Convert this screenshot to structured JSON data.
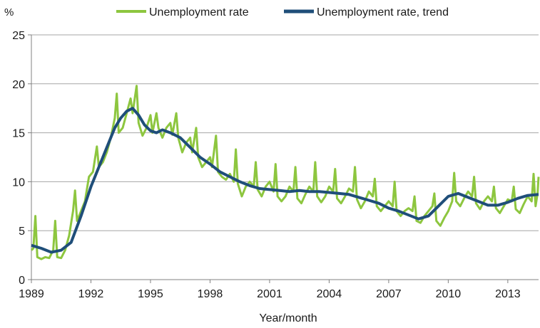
{
  "chart_data": {
    "type": "line",
    "title": "",
    "xlabel": "Year/month",
    "ylabel": "%",
    "ylim": [
      0,
      25
    ],
    "y_ticks": [
      "0",
      "5",
      "10",
      "15",
      "20",
      "25"
    ],
    "x_range": [
      1989.0,
      2014.55
    ],
    "x_ticks": [
      "1989",
      "1992",
      "1995",
      "1998",
      "2001",
      "2004",
      "2007",
      "2010",
      "2013"
    ],
    "grid": "horizontal",
    "legend_position": "top",
    "series": [
      {
        "name": "Unemployment rate",
        "color": "#8DC63F",
        "points": [
          [
            1989.0,
            3.0
          ],
          [
            1989.1,
            3.2
          ],
          [
            1989.2,
            6.5
          ],
          [
            1989.3,
            2.3
          ],
          [
            1989.5,
            2.1
          ],
          [
            1989.7,
            2.3
          ],
          [
            1989.9,
            2.2
          ],
          [
            1990.1,
            3.0
          ],
          [
            1990.2,
            6.0
          ],
          [
            1990.3,
            2.3
          ],
          [
            1990.5,
            2.2
          ],
          [
            1990.7,
            3.0
          ],
          [
            1990.9,
            4.5
          ],
          [
            1991.1,
            7.0
          ],
          [
            1991.2,
            9.1
          ],
          [
            1991.3,
            6.0
          ],
          [
            1991.5,
            7.0
          ],
          [
            1991.7,
            8.0
          ],
          [
            1991.9,
            10.5
          ],
          [
            1992.1,
            11.0
          ],
          [
            1992.3,
            13.6
          ],
          [
            1992.4,
            11.5
          ],
          [
            1992.6,
            12.0
          ],
          [
            1992.8,
            13.0
          ],
          [
            1993.0,
            14.5
          ],
          [
            1993.2,
            16.5
          ],
          [
            1993.3,
            19.0
          ],
          [
            1993.4,
            15.0
          ],
          [
            1993.6,
            15.5
          ],
          [
            1993.8,
            17.0
          ],
          [
            1994.0,
            18.5
          ],
          [
            1994.1,
            17.0
          ],
          [
            1994.3,
            19.8
          ],
          [
            1994.4,
            16.0
          ],
          [
            1994.6,
            14.7
          ],
          [
            1994.8,
            15.5
          ],
          [
            1995.0,
            16.8
          ],
          [
            1995.1,
            15.0
          ],
          [
            1995.3,
            17.0
          ],
          [
            1995.4,
            15.5
          ],
          [
            1995.6,
            14.5
          ],
          [
            1995.8,
            15.5
          ],
          [
            1996.0,
            16.0
          ],
          [
            1996.1,
            14.8
          ],
          [
            1996.3,
            17.0
          ],
          [
            1996.4,
            14.5
          ],
          [
            1996.6,
            13.0
          ],
          [
            1996.8,
            14.0
          ],
          [
            1997.0,
            14.5
          ],
          [
            1997.1,
            13.0
          ],
          [
            1997.3,
            15.5
          ],
          [
            1997.4,
            12.5
          ],
          [
            1997.6,
            11.5
          ],
          [
            1997.8,
            12.0
          ],
          [
            1998.0,
            12.5
          ],
          [
            1998.1,
            11.5
          ],
          [
            1998.3,
            14.7
          ],
          [
            1998.4,
            11.0
          ],
          [
            1998.6,
            10.5
          ],
          [
            1998.8,
            10.2
          ],
          [
            1999.0,
            10.8
          ],
          [
            1999.2,
            10.0
          ],
          [
            1999.3,
            13.3
          ],
          [
            1999.4,
            9.8
          ],
          [
            1999.6,
            8.5
          ],
          [
            1999.8,
            9.5
          ],
          [
            2000.0,
            10.0
          ],
          [
            2000.2,
            9.5
          ],
          [
            2000.3,
            12.0
          ],
          [
            2000.4,
            9.2
          ],
          [
            2000.6,
            8.5
          ],
          [
            2000.8,
            9.5
          ],
          [
            2001.0,
            10.0
          ],
          [
            2001.2,
            9.0
          ],
          [
            2001.3,
            11.8
          ],
          [
            2001.4,
            8.5
          ],
          [
            2001.6,
            8.0
          ],
          [
            2001.8,
            8.5
          ],
          [
            2002.0,
            9.5
          ],
          [
            2002.2,
            9.0
          ],
          [
            2002.3,
            11.5
          ],
          [
            2002.4,
            8.3
          ],
          [
            2002.6,
            7.8
          ],
          [
            2002.8,
            8.7
          ],
          [
            2003.0,
            9.5
          ],
          [
            2003.2,
            9.0
          ],
          [
            2003.3,
            12.0
          ],
          [
            2003.4,
            8.5
          ],
          [
            2003.6,
            7.9
          ],
          [
            2003.8,
            8.5
          ],
          [
            2004.0,
            9.5
          ],
          [
            2004.2,
            9.0
          ],
          [
            2004.3,
            11.3
          ],
          [
            2004.4,
            8.3
          ],
          [
            2004.6,
            7.8
          ],
          [
            2004.8,
            8.5
          ],
          [
            2005.0,
            9.3
          ],
          [
            2005.2,
            9.0
          ],
          [
            2005.3,
            11.5
          ],
          [
            2005.4,
            8.2
          ],
          [
            2005.6,
            7.3
          ],
          [
            2005.8,
            8.0
          ],
          [
            2006.0,
            9.0
          ],
          [
            2006.2,
            8.5
          ],
          [
            2006.3,
            10.3
          ],
          [
            2006.4,
            7.5
          ],
          [
            2006.6,
            7.0
          ],
          [
            2006.8,
            7.5
          ],
          [
            2007.0,
            8.0
          ],
          [
            2007.2,
            7.5
          ],
          [
            2007.3,
            10.0
          ],
          [
            2007.4,
            7.0
          ],
          [
            2007.6,
            6.5
          ],
          [
            2007.8,
            7.0
          ],
          [
            2008.0,
            7.3
          ],
          [
            2008.2,
            7.0
          ],
          [
            2008.3,
            8.5
          ],
          [
            2008.4,
            6.0
          ],
          [
            2008.6,
            5.8
          ],
          [
            2008.8,
            6.5
          ],
          [
            2009.0,
            7.0
          ],
          [
            2009.2,
            7.5
          ],
          [
            2009.3,
            8.8
          ],
          [
            2009.4,
            6.0
          ],
          [
            2009.6,
            5.5
          ],
          [
            2009.8,
            6.3
          ],
          [
            2010.0,
            7.0
          ],
          [
            2010.2,
            8.0
          ],
          [
            2010.3,
            10.9
          ],
          [
            2010.4,
            8.0
          ],
          [
            2010.6,
            7.5
          ],
          [
            2010.8,
            8.3
          ],
          [
            2011.0,
            9.0
          ],
          [
            2011.2,
            8.5
          ],
          [
            2011.3,
            10.5
          ],
          [
            2011.4,
            7.8
          ],
          [
            2011.6,
            7.2
          ],
          [
            2011.8,
            8.0
          ],
          [
            2012.0,
            8.5
          ],
          [
            2012.2,
            8.0
          ],
          [
            2012.3,
            9.5
          ],
          [
            2012.4,
            7.3
          ],
          [
            2012.6,
            6.8
          ],
          [
            2012.8,
            7.5
          ],
          [
            2013.0,
            8.2
          ],
          [
            2013.2,
            8.0
          ],
          [
            2013.3,
            9.5
          ],
          [
            2013.4,
            7.2
          ],
          [
            2013.6,
            6.8
          ],
          [
            2013.8,
            7.7
          ],
          [
            2014.0,
            8.5
          ],
          [
            2014.2,
            8.0
          ],
          [
            2014.3,
            10.8
          ],
          [
            2014.4,
            7.5
          ],
          [
            2014.5,
            8.8
          ],
          [
            2014.55,
            10.5
          ]
        ]
      },
      {
        "name": "Unemployment rate, trend",
        "color": "#1F4E79",
        "points": [
          [
            1989.0,
            3.5
          ],
          [
            1989.5,
            3.2
          ],
          [
            1990.0,
            2.8
          ],
          [
            1990.5,
            3.0
          ],
          [
            1991.0,
            3.8
          ],
          [
            1991.5,
            6.5
          ],
          [
            1992.0,
            9.5
          ],
          [
            1992.5,
            12.0
          ],
          [
            1993.0,
            14.5
          ],
          [
            1993.2,
            15.5
          ],
          [
            1993.5,
            16.5
          ],
          [
            1993.8,
            17.2
          ],
          [
            1994.1,
            17.5
          ],
          [
            1994.4,
            16.8
          ],
          [
            1994.7,
            15.8
          ],
          [
            1995.0,
            15.2
          ],
          [
            1995.3,
            15.0
          ],
          [
            1995.6,
            15.3
          ],
          [
            1996.0,
            15.0
          ],
          [
            1996.5,
            14.5
          ],
          [
            1997.0,
            13.5
          ],
          [
            1997.5,
            12.5
          ],
          [
            1998.0,
            11.8
          ],
          [
            1998.5,
            11.0
          ],
          [
            1999.0,
            10.5
          ],
          [
            1999.5,
            10.0
          ],
          [
            2000.0,
            9.6
          ],
          [
            2000.5,
            9.3
          ],
          [
            2001.0,
            9.2
          ],
          [
            2001.5,
            9.1
          ],
          [
            2002.0,
            9.0
          ],
          [
            2002.5,
            9.1
          ],
          [
            2003.0,
            9.0
          ],
          [
            2003.5,
            9.0
          ],
          [
            2004.0,
            8.9
          ],
          [
            2004.5,
            8.8
          ],
          [
            2005.0,
            8.7
          ],
          [
            2005.5,
            8.4
          ],
          [
            2006.0,
            8.1
          ],
          [
            2006.5,
            7.8
          ],
          [
            2007.0,
            7.3
          ],
          [
            2007.5,
            7.0
          ],
          [
            2008.0,
            6.6
          ],
          [
            2008.5,
            6.2
          ],
          [
            2009.0,
            6.5
          ],
          [
            2009.5,
            7.5
          ],
          [
            2010.0,
            8.5
          ],
          [
            2010.5,
            8.8
          ],
          [
            2011.0,
            8.4
          ],
          [
            2011.5,
            8.0
          ],
          [
            2012.0,
            7.6
          ],
          [
            2012.5,
            7.6
          ],
          [
            2013.0,
            7.9
          ],
          [
            2013.5,
            8.3
          ],
          [
            2014.0,
            8.6
          ],
          [
            2014.55,
            8.7
          ]
        ]
      }
    ]
  }
}
